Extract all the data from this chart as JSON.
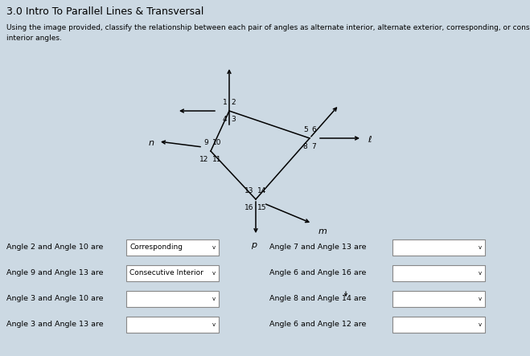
{
  "title": "3.0 Intro To Parallel Lines & Transversal",
  "bg_color": "#ccd9e3",
  "instruction": "Using the image provided, classify the relationship between each pair of angles as alternate interior, alternate exterior, corresponding, or consecutive interior angles.",
  "rows": [
    [
      "Angle 2 and Angle 10 are",
      "Corresponding",
      "Angle 7 and Angle 13 are",
      ""
    ],
    [
      "Angle 9 and Angle 13 are",
      "Consecutive Interior",
      "Angle 6 and Angle 16 are",
      ""
    ],
    [
      "Angle 3 and Angle 10 are",
      "",
      "Angle 8 and Angle 14 are",
      ""
    ],
    [
      "Angle 3 and Angle 13 are",
      "",
      "Angle 6 and Angle 12 are",
      ""
    ]
  ],
  "p1": [
    0.345,
    0.76
  ],
  "p2": [
    0.53,
    0.68
  ],
  "p3": [
    0.305,
    0.64
  ],
  "p4": [
    0.38,
    0.5
  ]
}
